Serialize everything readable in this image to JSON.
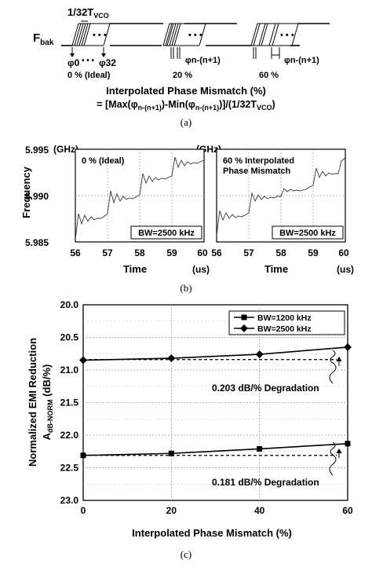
{
  "panel_a": {
    "signal_label": "F",
    "signal_label_sub": "bak",
    "tvco_label_prefix": "1/32T",
    "tvco_label_sub": "VCO",
    "phase0": "φ0",
    "phase_dots": "• • •",
    "phase32": "φ32",
    "phase_n": "φn-(n+1)",
    "cases": [
      "0 % (Ideal)",
      "20 %",
      "60 %"
    ],
    "formula_title": "Interpolated Phase Mismatch (%)",
    "formula": "= [Max(φn-(n+1))-Min(φn-(n+1))]/(1/32TVCO)",
    "caption": "(a)"
  },
  "panel_b": {
    "ylabel": "Frequency",
    "yunit": "(GHz)",
    "xlabel": "Time",
    "xunit": "(us)",
    "yticks": [
      "5.995",
      "5.990",
      "5.985"
    ],
    "xticks": [
      "56",
      "57",
      "58",
      "59",
      "60"
    ],
    "left_label": "0 % (Ideal)",
    "right_label_1": "60 % Interpolated",
    "right_label_2": "Phase Mismatch",
    "bw_label": "BW=2500 kHz",
    "caption": "(b)"
  },
  "chart_data": {
    "type": "line",
    "ylabel": "Normalized EMI Reduction",
    "ylabel2": "A",
    "ylabel2_sub": "dB-NORM",
    "ylabel2_unit": "(dB/%)",
    "xlabel": "Interpolated Phase Mismatch (%)",
    "x": [
      0,
      20,
      40,
      60
    ],
    "xticks": [
      "0",
      "20",
      "40",
      "60"
    ],
    "yticks": [
      "20.0",
      "20.5",
      "21.0",
      "21.5",
      "22.0",
      "22.5",
      "23.0"
    ],
    "ylim": [
      23.0,
      20.0
    ],
    "xlim": [
      0,
      60
    ],
    "series": [
      {
        "name": "BW=1200 kHz",
        "marker": "square",
        "values": [
          22.31,
          22.28,
          22.21,
          22.13
        ]
      },
      {
        "name": "BW=2500 kHz",
        "marker": "diamond",
        "values": [
          20.85,
          20.82,
          20.76,
          20.65
        ]
      }
    ],
    "reference_lines": [
      20.84,
      22.31
    ],
    "annotations": [
      "0.203 dB/% Degradation",
      "0.181 dB/% Degradation"
    ],
    "legend_position": "top-right",
    "caption": "(c)"
  }
}
